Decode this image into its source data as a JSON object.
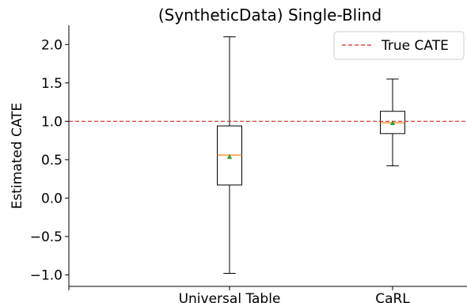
{
  "chart_data": {
    "type": "box",
    "title": "(SyntheticData) Single-Blind",
    "xlabel": "",
    "ylabel": "Estimated CATE",
    "ylim": [
      -1.15,
      2.25
    ],
    "yticks": [
      -1.0,
      -0.5,
      0.0,
      0.5,
      1.0,
      1.5,
      2.0
    ],
    "ytick_labels": [
      "−1.0",
      "−0.5",
      "0.0",
      "0.5",
      "1.0",
      "1.5",
      "2.0"
    ],
    "categories": [
      "Universal Table",
      "CaRL"
    ],
    "boxes": [
      {
        "category": "Universal Table",
        "whisker_low": -0.98,
        "q1": 0.17,
        "median": 0.56,
        "mean": 0.54,
        "q3": 0.94,
        "whisker_high": 2.1
      },
      {
        "category": "CaRL",
        "whisker_low": 0.42,
        "q1": 0.84,
        "median": 0.98,
        "mean": 0.98,
        "q3": 1.13,
        "whisker_high": 1.55
      }
    ],
    "reference_line": {
      "name": "True CATE",
      "value": 1.0,
      "color": "#d62728",
      "style": "dashed"
    },
    "legend": {
      "position": "top-right",
      "entries": [
        "True CATE"
      ]
    },
    "grid": false,
    "colors": {
      "box": "#000000",
      "median": "#ff7f0e",
      "mean": "#2ca02c",
      "reference": "#d62728"
    }
  }
}
